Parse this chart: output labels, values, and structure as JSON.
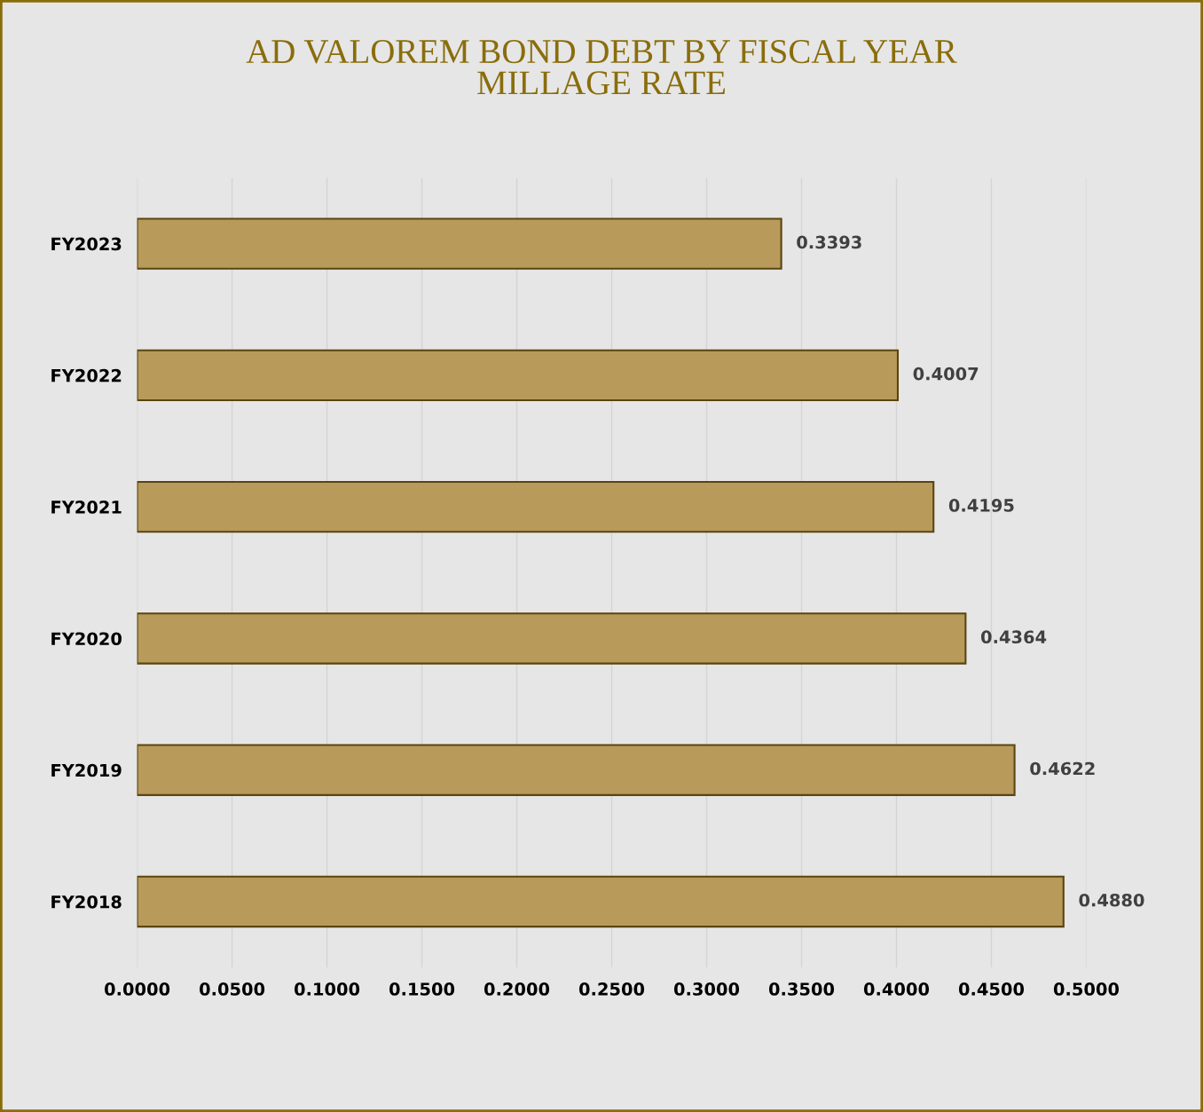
{
  "chart_data": {
    "type": "bar",
    "orientation": "horizontal",
    "title": "AD VALOREM BOND DEBT BY FISCAL YEAR\nMILLAGE RATE",
    "categories": [
      "FY2023",
      "FY2022",
      "FY2021",
      "FY2020",
      "FY2019",
      "FY2018"
    ],
    "values": [
      0.3393,
      0.4007,
      0.4195,
      0.4364,
      0.4622,
      0.488
    ],
    "value_labels": [
      "0.3393",
      "0.4007",
      "0.4195",
      "0.4364",
      "0.4622",
      "0.4880"
    ],
    "color": "#b89a5a",
    "xlim": [
      0,
      0.5
    ],
    "xticks": [
      {
        "value": 0,
        "label": "0.0000"
      },
      {
        "value": 0.05,
        "label": "0.0500"
      },
      {
        "value": 0.1,
        "label": "0.1000"
      },
      {
        "value": 0.15,
        "label": "0.1500"
      },
      {
        "value": 0.2,
        "label": "0.2000"
      },
      {
        "value": 0.25,
        "label": "0.2500"
      },
      {
        "value": 0.3,
        "label": "0.3000"
      },
      {
        "value": 0.35,
        "label": "0.3500"
      },
      {
        "value": 0.4,
        "label": "0.4000"
      },
      {
        "value": 0.45,
        "label": "0.4500"
      },
      {
        "value": 0.5,
        "label": "0.5000"
      }
    ],
    "grid": "x",
    "legend": false
  }
}
